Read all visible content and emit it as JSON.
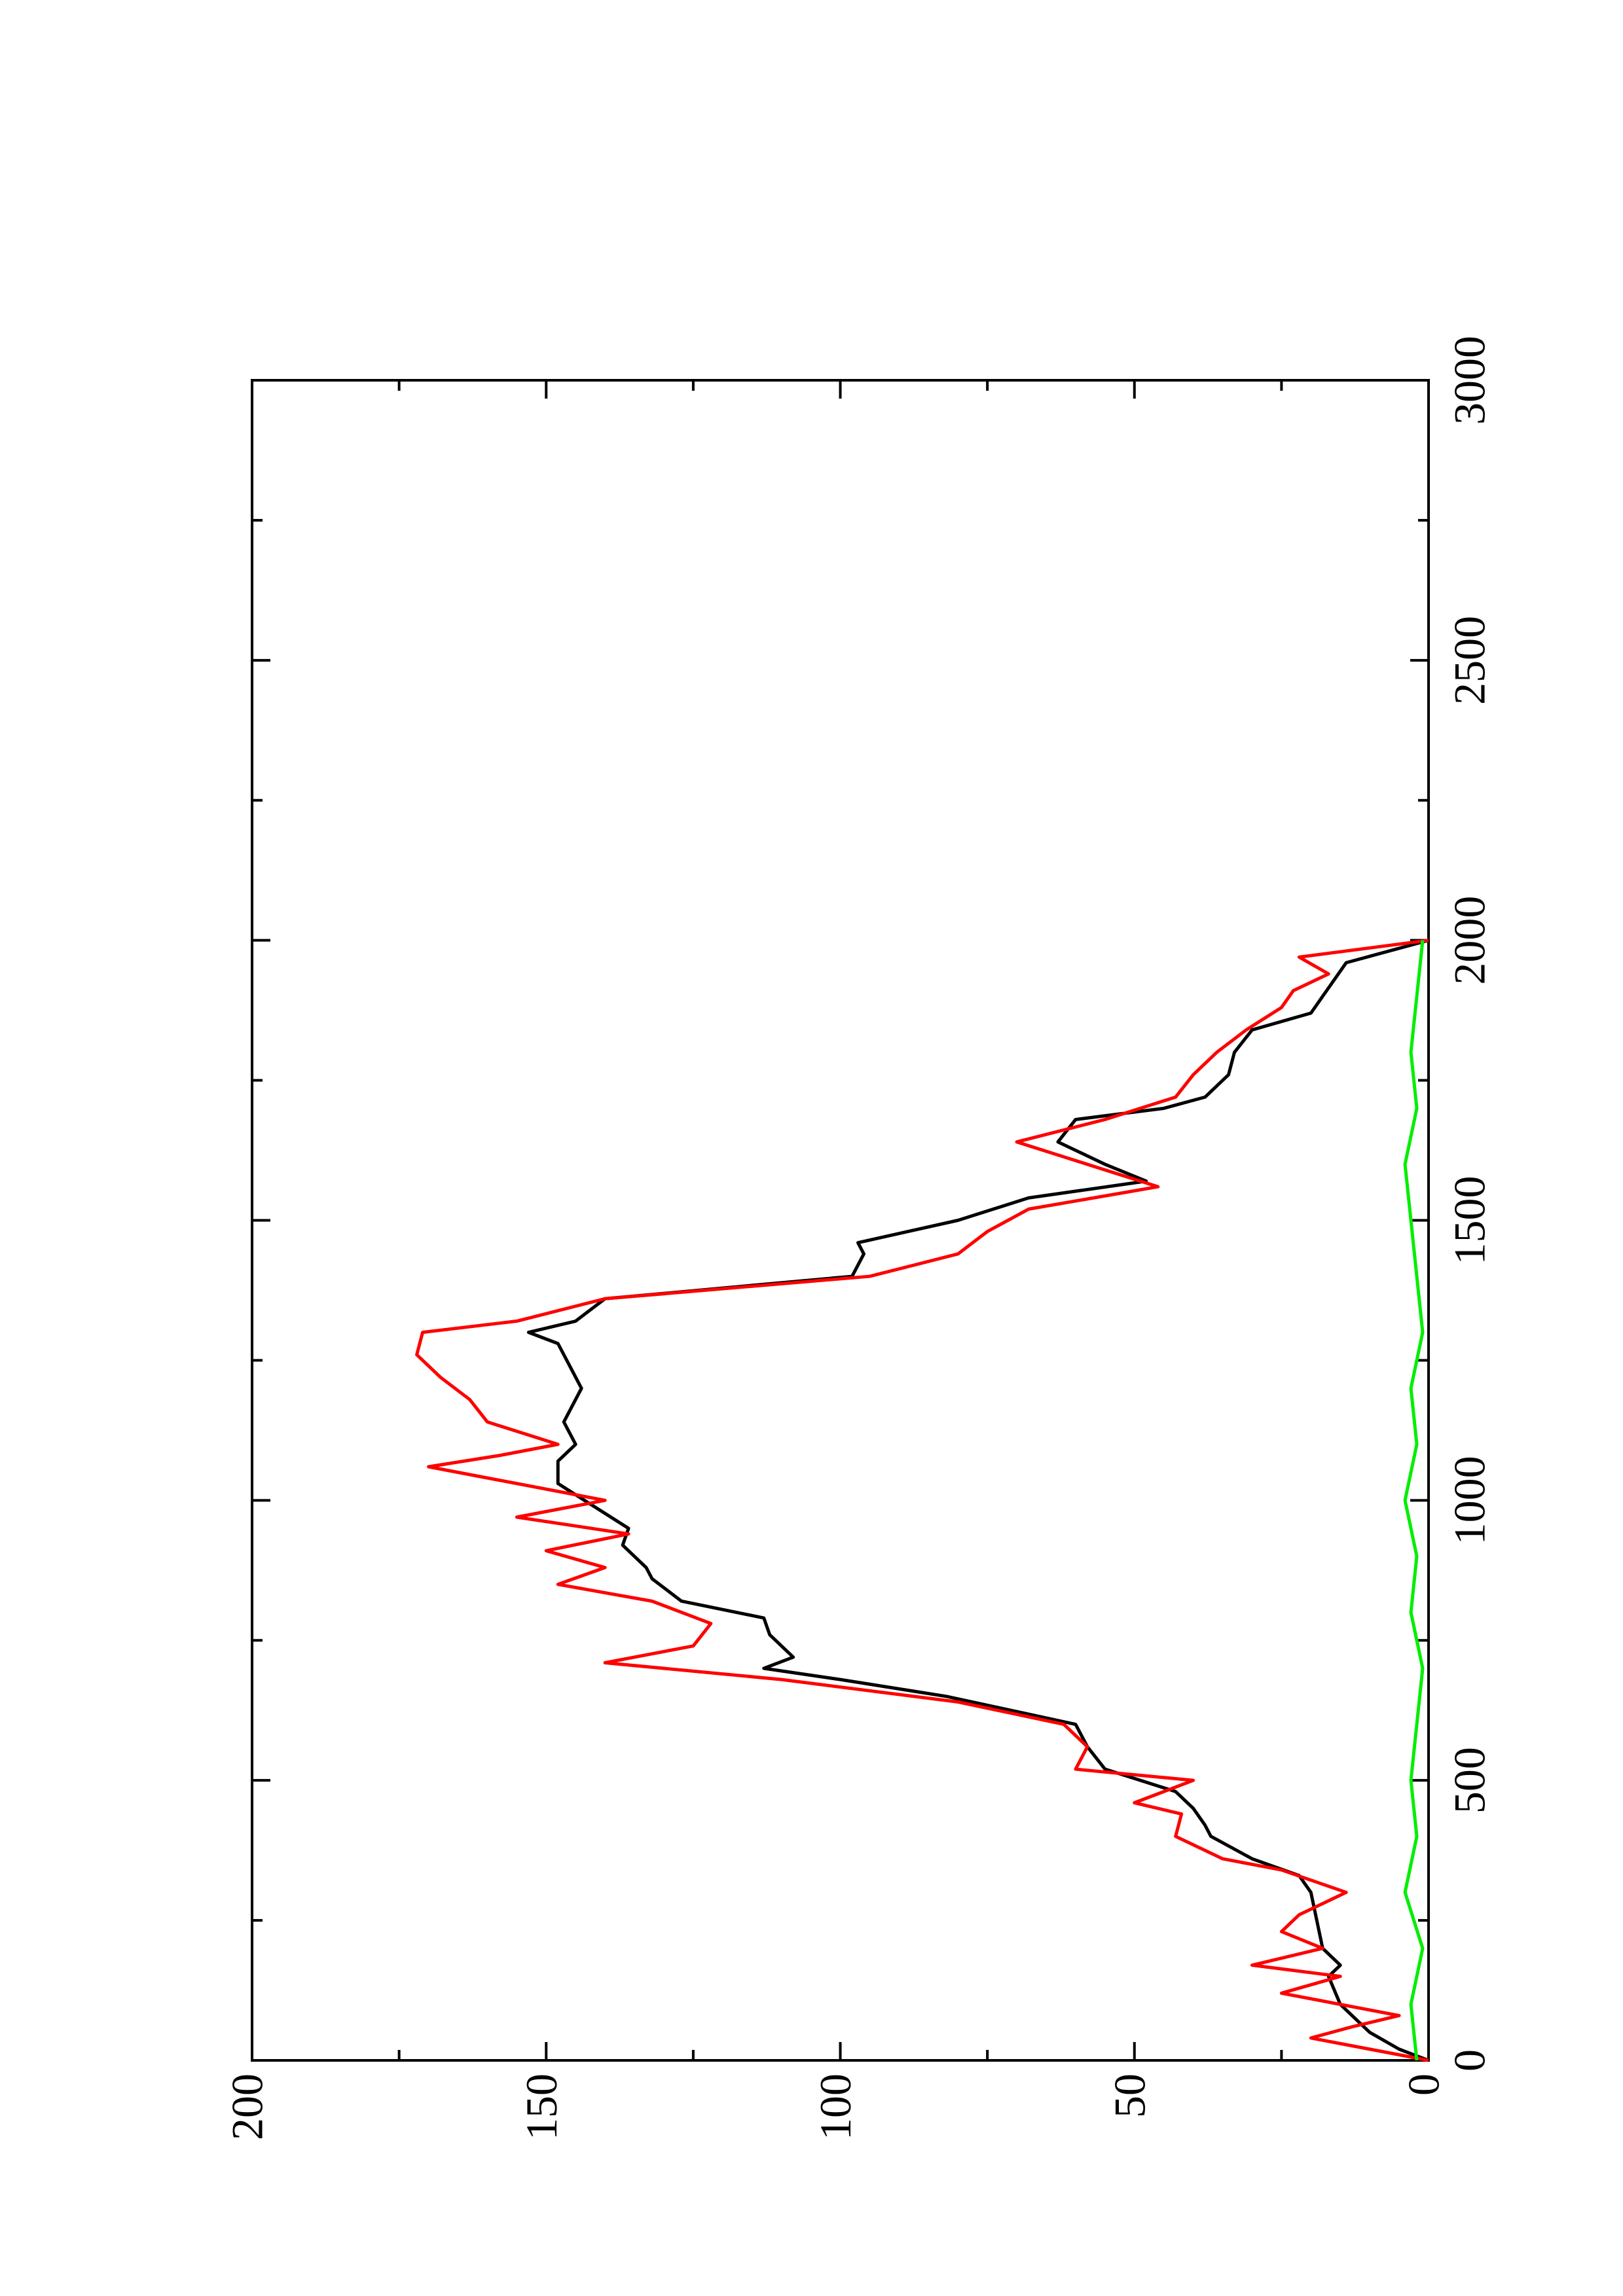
{
  "chart_data": {
    "type": "line",
    "xlim": [
      0,
      3000
    ],
    "xticks": [
      0,
      500,
      1000,
      1500,
      2000,
      2500,
      3000
    ],
    "xminorticks": [
      250,
      750,
      1250,
      1750,
      2250,
      2750
    ],
    "ylim": [
      0,
      200
    ],
    "yticks": [
      0,
      50,
      100,
      150,
      200
    ],
    "yminorticks": [
      25,
      75,
      125,
      175
    ],
    "rotated": true,
    "series": [
      {
        "color": "#000000",
        "x": [
          0,
          20,
          50,
          80,
          100,
          150,
          170,
          200,
          250,
          300,
          330,
          360,
          400,
          420,
          450,
          480,
          520,
          560,
          600,
          650,
          680,
          700,
          720,
          760,
          790,
          820,
          860,
          880,
          920,
          950,
          990,
          1030,
          1070,
          1100,
          1140,
          1200,
          1240,
          1280,
          1300,
          1320,
          1360,
          1400,
          1440,
          1460,
          1500,
          1540,
          1570,
          1600,
          1640,
          1680,
          1700,
          1720,
          1760,
          1800,
          1840,
          1870,
          1900,
          1930,
          1960,
          2000
        ],
        "values": [
          0,
          5,
          10,
          13,
          15,
          17,
          15,
          18,
          19,
          20,
          22,
          30,
          37,
          38,
          40,
          43,
          55,
          58,
          60,
          82,
          100,
          113,
          108,
          112,
          113,
          127,
          132,
          133,
          137,
          136,
          142,
          148,
          148,
          145,
          147,
          144,
          146,
          148,
          153,
          145,
          140,
          98,
          96,
          97,
          80,
          68,
          48,
          55,
          63,
          60,
          45,
          38,
          34,
          33,
          30,
          20,
          18,
          16,
          14,
          0
        ]
      },
      {
        "color": "#ff0000",
        "x": [
          0,
          20,
          40,
          60,
          80,
          120,
          150,
          170,
          200,
          230,
          260,
          300,
          340,
          360,
          400,
          440,
          460,
          500,
          520,
          560,
          600,
          640,
          680,
          710,
          740,
          780,
          820,
          850,
          880,
          910,
          940,
          970,
          1000,
          1040,
          1060,
          1080,
          1100,
          1140,
          1180,
          1220,
          1260,
          1300,
          1320,
          1360,
          1400,
          1440,
          1480,
          1520,
          1560,
          1600,
          1640,
          1680,
          1720,
          1760,
          1800,
          1840,
          1880,
          1910,
          1940,
          1970,
          2000
        ],
        "values": [
          0,
          10,
          20,
          13,
          5,
          25,
          15,
          30,
          18,
          25,
          22,
          14,
          25,
          35,
          43,
          42,
          50,
          40,
          60,
          58,
          62,
          80,
          110,
          140,
          125,
          122,
          132,
          148,
          140,
          150,
          136,
          155,
          140,
          160,
          170,
          158,
          148,
          160,
          163,
          168,
          172,
          171,
          155,
          140,
          95,
          80,
          75,
          68,
          46,
          58,
          70,
          55,
          43,
          40,
          36,
          31,
          25,
          23,
          17,
          22,
          0
        ]
      },
      {
        "color": "#00ee00",
        "x": [
          0,
          100,
          200,
          300,
          400,
          500,
          600,
          700,
          800,
          900,
          1000,
          1100,
          1200,
          1300,
          1400,
          1500,
          1600,
          1700,
          1800,
          1900,
          2000
        ],
        "values": [
          2,
          3,
          1,
          4,
          2,
          3,
          2,
          1,
          3,
          2,
          4,
          2,
          3,
          1,
          2,
          3,
          4,
          2,
          3,
          2,
          1
        ]
      }
    ]
  }
}
